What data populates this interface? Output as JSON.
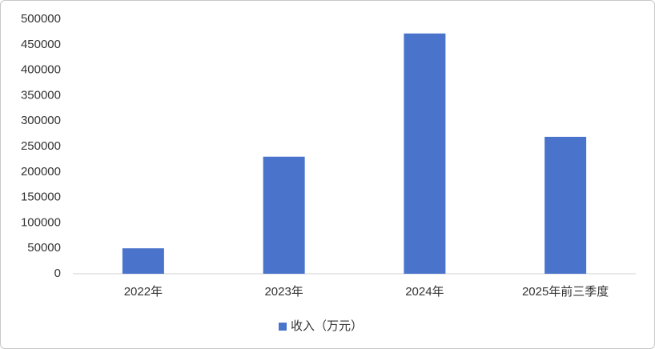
{
  "chart_data": {
    "type": "bar",
    "categories": [
      "2022年",
      "2023年",
      "2024年",
      "2025年前三季度"
    ],
    "series": [
      {
        "name": "收入（万元）",
        "color": "#4a74cc",
        "values": [
          50000,
          230000,
          472000,
          269000
        ]
      }
    ],
    "ylim": [
      0,
      500000
    ],
    "yticks": [
      0,
      50000,
      100000,
      150000,
      200000,
      250000,
      300000,
      350000,
      400000,
      450000,
      500000
    ],
    "grid": false,
    "legend": "bottom"
  }
}
